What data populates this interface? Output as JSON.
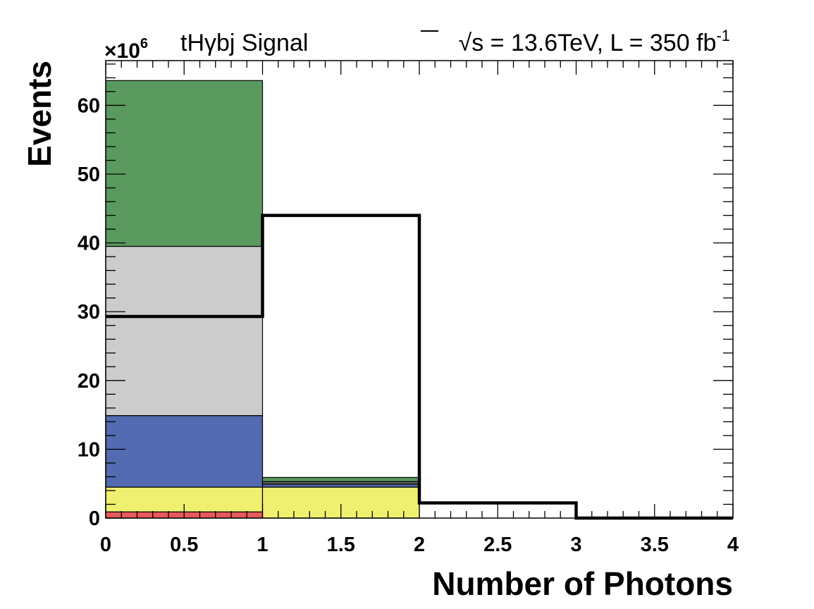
{
  "chart_data": {
    "type": "bar",
    "title": "tHγbj Signal",
    "annotation": {
      "sqrt_symbol": "√",
      "energy_text": "s = 13.6TeV, L = 350 fb",
      "lumi_exponent": "-1"
    },
    "xlabel": "Number of Photons",
    "ylabel": "Events",
    "y_multiplier": {
      "base": "×10",
      "exponent": "6"
    },
    "xlim": [
      0,
      4
    ],
    "ylim": [
      0,
      66.5
    ],
    "x_ticks": [
      "0",
      "0.5",
      "1",
      "1.5",
      "2",
      "2.5",
      "3",
      "3.5",
      "4"
    ],
    "y_ticks": [
      "0",
      "10",
      "20",
      "30",
      "40",
      "50",
      "60"
    ],
    "bin_edges": [
      0,
      1,
      2,
      3,
      4
    ],
    "stacked_series": [
      {
        "color": "#e85a5a",
        "values": [
          0.9,
          0.0,
          0.0,
          0.0
        ]
      },
      {
        "color": "#f0f070",
        "values": [
          3.6,
          4.5,
          0.0,
          0.0
        ]
      },
      {
        "color": "#536bb0",
        "values": [
          10.4,
          0.4,
          0.0,
          0.0
        ]
      },
      {
        "color": "#cccccc",
        "values": [
          14.5,
          0.2,
          0.0,
          0.0
        ]
      },
      {
        "color": "#cccccc",
        "values": [
          10.1,
          0.2,
          0.0,
          0.0
        ]
      },
      {
        "color": "#5a9a5e",
        "values": [
          24.1,
          0.6,
          0.0,
          0.0
        ]
      }
    ],
    "signal_line": {
      "color": "#000000",
      "values": [
        29.3,
        44.0,
        2.2,
        0.0
      ]
    },
    "grid": false,
    "legend": "none"
  }
}
